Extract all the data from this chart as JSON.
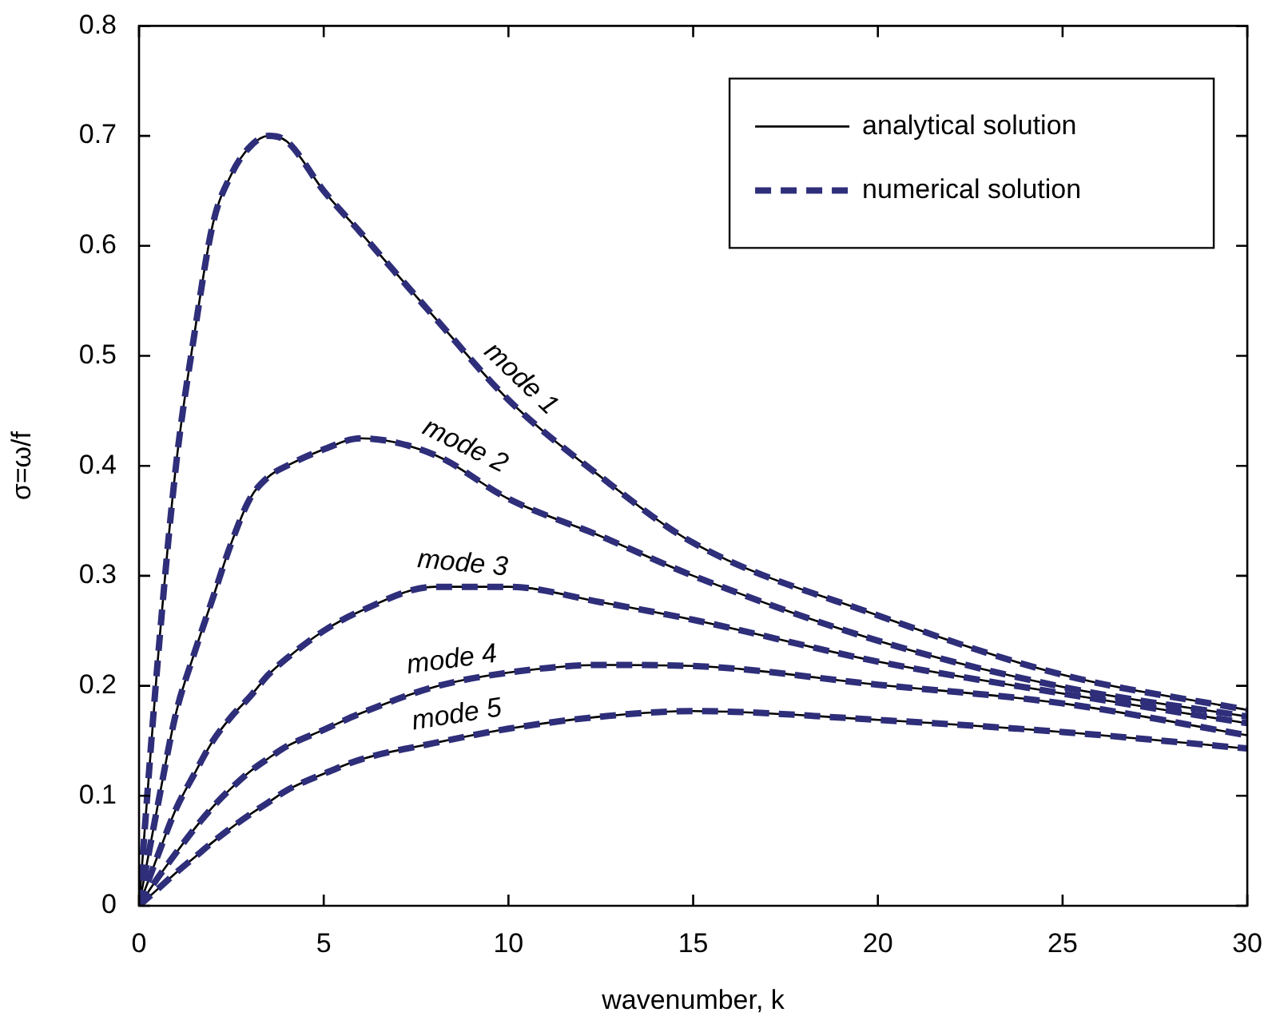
{
  "chart_data": {
    "type": "line",
    "xlabel": "wavenumber, k",
    "ylabel": "σ=ω/f",
    "legend": "top right",
    "x": [
      0,
      0.5,
      1,
      1.5,
      2,
      2.5,
      3,
      3.5,
      4,
      5,
      6,
      8,
      10,
      12.5,
      15,
      20,
      25,
      30
    ],
    "xlim": [
      0,
      30
    ],
    "xticks": [
      0,
      5,
      10,
      15,
      20,
      25,
      30
    ],
    "ylim": [
      0,
      0.8
    ],
    "yticks": [
      0,
      0.1,
      0.2,
      0.3,
      0.4,
      0.5,
      0.6,
      0.7,
      0.8
    ],
    "series": [
      {
        "name": "analytical solution",
        "color": "#000000",
        "line_style": "solid",
        "values": [
          0,
          0.22,
          0.4,
          0.52,
          0.62,
          0.665,
          0.69,
          0.7,
          0.695,
          0.65,
          0.612,
          0.535,
          0.46,
          0.39,
          0.33,
          0.264,
          0.21,
          0.178
        ]
      },
      {
        "color": "#000000",
        "line_style": "solid",
        "values": [
          0,
          0.09,
          0.175,
          0.23,
          0.28,
          0.33,
          0.37,
          0.39,
          0.4,
          0.415,
          0.425,
          0.41,
          0.37,
          0.336,
          0.3,
          0.241,
          0.199,
          0.172
        ]
      },
      {
        "color": "#000000",
        "line_style": "solid",
        "values": [
          0,
          0.045,
          0.088,
          0.12,
          0.15,
          0.172,
          0.19,
          0.21,
          0.225,
          0.25,
          0.268,
          0.29,
          0.29,
          0.276,
          0.26,
          0.222,
          0.193,
          0.166
        ]
      },
      {
        "color": "#000000",
        "line_style": "solid",
        "values": [
          0,
          0.025,
          0.048,
          0.07,
          0.09,
          0.107,
          0.122,
          0.134,
          0.145,
          0.16,
          0.175,
          0.199,
          0.212,
          0.219,
          0.218,
          0.201,
          0.184,
          0.155
        ]
      },
      {
        "color": "#000000",
        "line_style": "solid",
        "values": [
          0,
          0.015,
          0.03,
          0.044,
          0.058,
          0.071,
          0.083,
          0.094,
          0.105,
          0.12,
          0.133,
          0.148,
          0.161,
          0.172,
          0.177,
          0.169,
          0.158,
          0.143
        ]
      },
      {
        "name": "numerical solution",
        "color": "#2e2e7a",
        "line_style": "dashed",
        "values": [
          0,
          0.22,
          0.4,
          0.52,
          0.62,
          0.665,
          0.69,
          0.7,
          0.695,
          0.65,
          0.612,
          0.535,
          0.46,
          0.39,
          0.33,
          0.264,
          0.21,
          0.178
        ]
      },
      {
        "color": "#2e2e7a",
        "line_style": "dashed",
        "values": [
          0,
          0.09,
          0.175,
          0.23,
          0.28,
          0.33,
          0.37,
          0.39,
          0.4,
          0.415,
          0.425,
          0.41,
          0.37,
          0.336,
          0.3,
          0.241,
          0.199,
          0.172
        ]
      },
      {
        "color": "#2e2e7a",
        "line_style": "dashed",
        "values": [
          0,
          0.045,
          0.088,
          0.12,
          0.15,
          0.172,
          0.19,
          0.21,
          0.225,
          0.25,
          0.268,
          0.29,
          0.29,
          0.276,
          0.26,
          0.222,
          0.193,
          0.166
        ]
      },
      {
        "color": "#2e2e7a",
        "line_style": "dashed",
        "values": [
          0,
          0.025,
          0.048,
          0.07,
          0.09,
          0.107,
          0.122,
          0.134,
          0.145,
          0.16,
          0.175,
          0.199,
          0.212,
          0.219,
          0.218,
          0.201,
          0.184,
          0.155
        ]
      },
      {
        "color": "#2e2e7a",
        "line_style": "dashed",
        "values": [
          0,
          0.015,
          0.03,
          0.044,
          0.058,
          0.071,
          0.083,
          0.094,
          0.105,
          0.12,
          0.133,
          0.148,
          0.161,
          0.172,
          0.177,
          0.169,
          0.158,
          0.143
        ]
      }
    ],
    "annotations": [
      "mode 1",
      "mode 2",
      "mode 3",
      "mode 4",
      "mode 5"
    ]
  }
}
